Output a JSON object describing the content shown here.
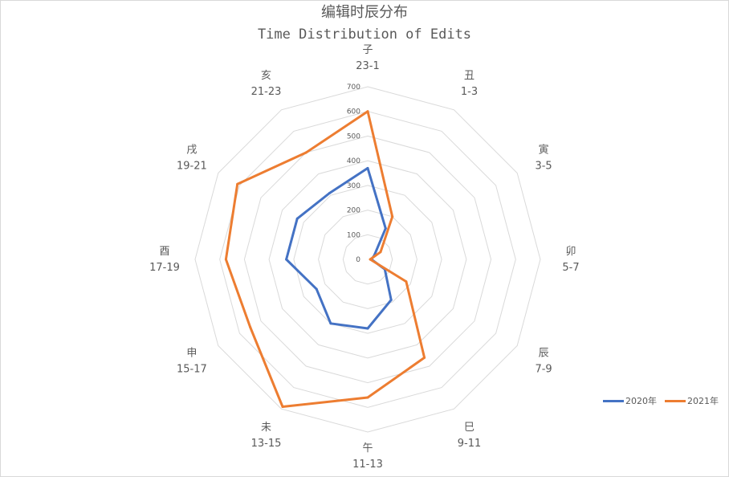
{
  "chart_data": {
    "type": "radar",
    "title": "编辑时辰分布",
    "subtitle": "Time Distribution of Edits",
    "categories": [
      {
        "name": "子",
        "range": "23-1"
      },
      {
        "name": "丑",
        "range": "1-3"
      },
      {
        "name": "寅",
        "range": "3-5"
      },
      {
        "name": "卯",
        "range": "5-7"
      },
      {
        "name": "辰",
        "range": "7-9"
      },
      {
        "name": "巳",
        "range": "9-11"
      },
      {
        "name": "午",
        "range": "11-13"
      },
      {
        "name": "未",
        "range": "13-15"
      },
      {
        "name": "申",
        "range": "15-17"
      },
      {
        "name": "酉",
        "range": "17-19"
      },
      {
        "name": "戌",
        "range": "19-21"
      },
      {
        "name": "亥",
        "range": "21-23"
      }
    ],
    "series": [
      {
        "name": "2020年",
        "color": "#4472C4",
        "values": [
          370,
          145,
          30,
          15,
          80,
          190,
          280,
          300,
          240,
          330,
          330,
          310
        ]
      },
      {
        "name": "2021年",
        "color": "#ED7D31",
        "values": [
          600,
          200,
          60,
          10,
          180,
          460,
          560,
          690,
          550,
          575,
          610,
          500
        ]
      }
    ],
    "rlim": [
      0,
      700
    ],
    "ticks": [
      0,
      100,
      200,
      300,
      400,
      500,
      600,
      700
    ],
    "grid": true,
    "legend": "right"
  }
}
